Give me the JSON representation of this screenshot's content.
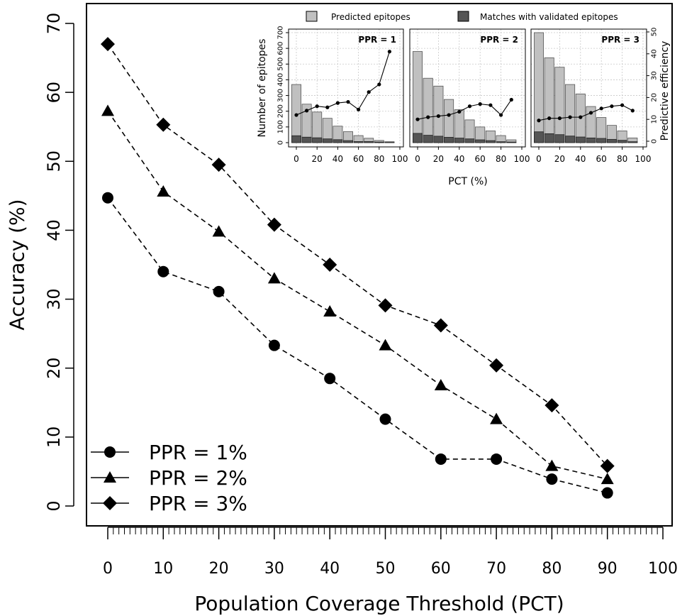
{
  "chart_data": [
    {
      "type": "line",
      "xlabel": "Population Coverage Threshold (PCT)",
      "ylabel": "Accuracy (%)",
      "xlim": [
        0,
        100
      ],
      "ylim": [
        0,
        70
      ],
      "x_ticks": [
        0,
        10,
        20,
        30,
        40,
        50,
        60,
        70,
        80,
        90,
        100
      ],
      "y_ticks": [
        0,
        10,
        20,
        30,
        40,
        50,
        60,
        70
      ],
      "x": [
        0,
        10,
        20,
        30,
        40,
        50,
        60,
        70,
        80,
        90
      ],
      "series": [
        {
          "name": "PPR = 1%",
          "marker": "circle",
          "values": [
            44.7,
            34.0,
            31.1,
            23.3,
            18.5,
            12.6,
            6.8,
            6.8,
            3.9,
            1.9
          ]
        },
        {
          "name": "PPR = 2%",
          "marker": "triangle",
          "values": [
            57.3,
            45.6,
            39.8,
            33.0,
            28.2,
            23.3,
            17.5,
            12.6,
            5.8,
            3.9
          ]
        },
        {
          "name": "PPR = 3%",
          "marker": "diamond",
          "values": [
            67.0,
            55.3,
            49.5,
            40.8,
            35.0,
            29.1,
            26.2,
            20.4,
            14.6,
            5.8
          ]
        }
      ],
      "legend": "bottom-left"
    },
    {
      "type": "bar",
      "title": "PPR = 1",
      "xlabel": "PCT (%)",
      "ylabel": "Number of epitopes",
      "ylim": [
        0,
        700
      ],
      "y_ticks": [
        0,
        100,
        200,
        300,
        400,
        500,
        600,
        700
      ],
      "x_ticks": [
        0,
        20,
        40,
        60,
        80,
        100
      ],
      "x": [
        0,
        10,
        20,
        30,
        40,
        50,
        60,
        70,
        80,
        90
      ],
      "series": [
        {
          "name": "Predicted epitopes",
          "color": "#c0c0c0",
          "values": [
            370,
            245,
            195,
            155,
            105,
            70,
            45,
            28,
            14,
            6
          ]
        },
        {
          "name": "Matches with validated epitopes",
          "color": "#555555",
          "values": [
            44,
            35,
            31,
            24,
            19,
            13,
            7,
            7,
            4,
            2
          ]
        }
      ],
      "efficiency_series": {
        "name": "Predictive efficiency",
        "ylim": [
          0,
          50
        ],
        "values": [
          12,
          14,
          16,
          15.5,
          17.5,
          18,
          14.5,
          22.5,
          26,
          41
        ]
      }
    },
    {
      "type": "bar",
      "title": "PPR = 2",
      "xlabel": "PCT (%)",
      "ylim": [
        0,
        700
      ],
      "x_ticks": [
        0,
        20,
        40,
        60,
        80,
        100
      ],
      "x": [
        0,
        10,
        20,
        30,
        40,
        50,
        60,
        70,
        80,
        90
      ],
      "series": [
        {
          "name": "Predicted epitopes",
          "color": "#c0c0c0",
          "values": [
            580,
            410,
            360,
            275,
            210,
            145,
            100,
            75,
            45,
            18
          ]
        },
        {
          "name": "Matches with validated epitopes",
          "color": "#555555",
          "values": [
            59,
            47,
            41,
            34,
            29,
            24,
            18,
            13,
            6,
            4
          ]
        }
      ],
      "efficiency_series": {
        "name": "Predictive efficiency",
        "ylim": [
          0,
          50
        ],
        "values": [
          10,
          11,
          11.5,
          12,
          13.5,
          16,
          17,
          16.5,
          12,
          19
        ]
      }
    },
    {
      "type": "bar",
      "title": "PPR = 3",
      "xlabel": "PCT (%)",
      "ylabel": "Predictive efficiency",
      "ylim": [
        0,
        700
      ],
      "y2_ticks": [
        0,
        10,
        20,
        30,
        40,
        50
      ],
      "x_ticks": [
        0,
        20,
        40,
        60,
        80,
        100
      ],
      "x": [
        0,
        10,
        20,
        30,
        40,
        50,
        60,
        70,
        80,
        90
      ],
      "series": [
        {
          "name": "Predicted epitopes",
          "color": "#c0c0c0",
          "values": [
            700,
            540,
            480,
            370,
            310,
            230,
            160,
            110,
            75,
            30
          ]
        },
        {
          "name": "Matches with validated epitopes",
          "color": "#555555",
          "values": [
            69,
            57,
            51,
            42,
            36,
            30,
            27,
            21,
            15,
            6
          ]
        }
      ],
      "efficiency_series": {
        "name": "Predictive efficiency",
        "ylim": [
          0,
          50
        ],
        "values": [
          9.5,
          10.5,
          10.5,
          11,
          11,
          13,
          15,
          16,
          16.5,
          14
        ]
      }
    }
  ],
  "inset_legend": [
    "Predicted epitopes",
    "Matches with validated epitopes"
  ]
}
